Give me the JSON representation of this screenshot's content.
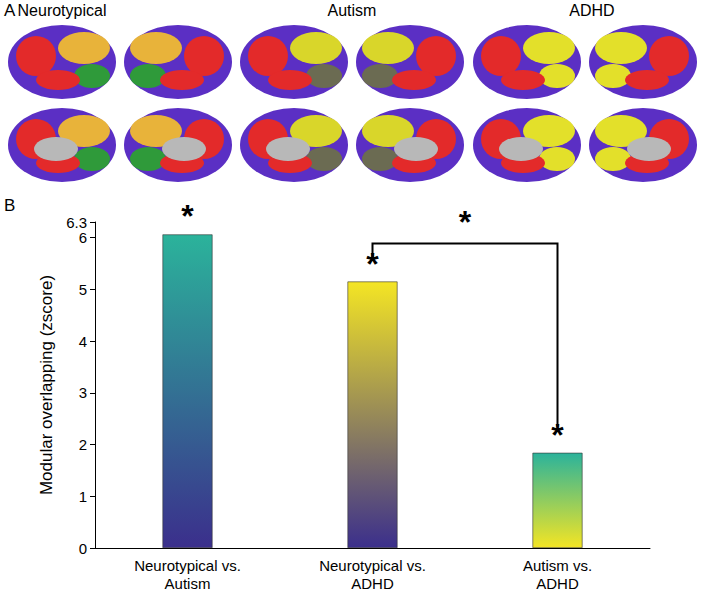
{
  "panel_labels": [
    "A",
    "B"
  ],
  "brain_maps": [
    "Neurotypical",
    "Autism",
    "ADHD"
  ],
  "chart_data": {
    "type": "bar",
    "categories": [
      "Neurotypical vs.\nAutism",
      "Neurotypical vs.\nADHD",
      "Autism vs.\nADHD"
    ],
    "values": [
      6.06,
      5.15,
      1.84
    ],
    "colors": [
      [
        "#2bb39b",
        "#3b2f8c"
      ],
      [
        "#f4e524",
        "#3b2f8c"
      ],
      [
        "#2bb39b",
        "#f4e524"
      ]
    ],
    "annotations": [
      "*",
      "*",
      "*"
    ],
    "comparisons": [
      {
        "pair": [
          "Neurotypical vs.\nADHD",
          "Autism vs.\nADHD"
        ],
        "label": "*"
      }
    ],
    "y_label": "Modular overlapping (zscore)",
    "ylim": [
      0,
      6.3
    ],
    "yticks": [
      0,
      1,
      2,
      3,
      4,
      5,
      6
    ],
    "grid": false
  }
}
